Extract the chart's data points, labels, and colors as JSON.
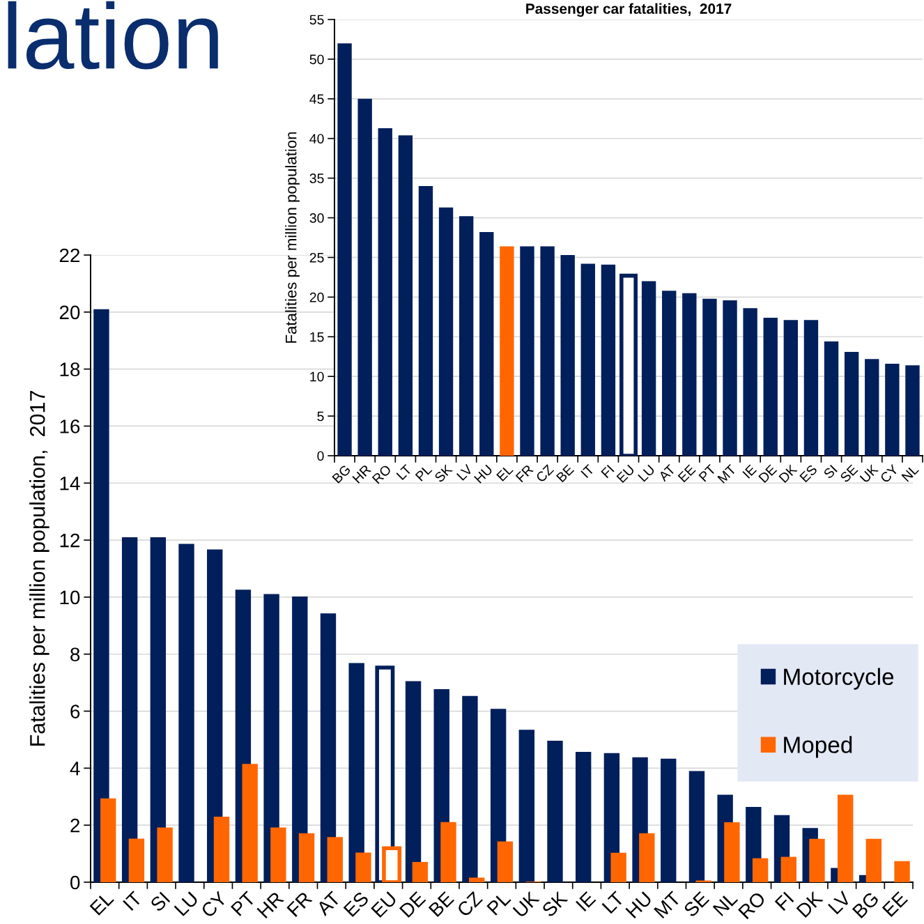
{
  "chart_data": [
    {
      "type": "bar",
      "ylabel": "Fatalities per million population,  2017",
      "annotations": [
        "lation"
      ],
      "categories": [
        "EL",
        "IT",
        "SI",
        "LU",
        "CY",
        "PT",
        "HR",
        "FR",
        "AT",
        "ES",
        "EU",
        "DE",
        "BE",
        "CZ",
        "PL",
        "UK",
        "SK",
        "IE",
        "LT",
        "HU",
        "MT",
        "SE",
        "NL",
        "RO",
        "FI",
        "DK",
        "LV",
        "BG",
        "EE"
      ],
      "series": [
        {
          "name": "Motorcycle",
          "color": "#001f5b",
          "colors": [
            "#001f5b",
            "#001f5b",
            "#001f5b",
            "#001f5b",
            "#001f5b",
            "#001f5b",
            "#001f5b",
            "#001f5b",
            "#001f5b",
            "#001f5b",
            "#ffffff",
            "#001f5b",
            "#001f5b",
            "#001f5b",
            "#001f5b",
            "#001f5b",
            "#001f5b",
            "#001f5b",
            "#001f5b",
            "#001f5b",
            "#001f5b",
            "#001f5b",
            "#001f5b",
            "#001f5b",
            "#001f5b",
            "#001f5b",
            "#001f5b",
            "#001f5b",
            "#001f5b"
          ],
          "values": [
            20.1,
            12.1,
            12.1,
            11.87,
            11.67,
            10.26,
            10.11,
            10.02,
            9.43,
            7.69,
            7.53,
            7.05,
            6.77,
            6.53,
            6.08,
            5.35,
            4.96,
            4.57,
            4.53,
            4.38,
            4.33,
            3.9,
            3.07,
            2.64,
            2.35,
            1.9,
            0.5,
            0.25,
            0
          ]
        },
        {
          "name": "Moped",
          "color": "#ff6600",
          "colors": [
            "#ff6600",
            "#ff6600",
            "#ff6600",
            "#ff6600",
            "#ff6600",
            "#ff6600",
            "#ff6600",
            "#ff6600",
            "#ff6600",
            "#ff6600",
            "#ffffff",
            "#ff6600",
            "#ff6600",
            "#ff6600",
            "#ff6600",
            "#ff6600",
            "#ff6600",
            "#ff6600",
            "#ff6600",
            "#ff6600",
            "#ff6600",
            "#ff6600",
            "#ff6600",
            "#ff6600",
            "#ff6600",
            "#ff6600",
            "#ff6600",
            "#ff6600",
            "#ff6600"
          ],
          "values": [
            2.94,
            1.53,
            1.92,
            0,
            2.3,
            4.15,
            1.92,
            1.72,
            1.58,
            1.04,
            1.19,
            0.71,
            2.11,
            0.16,
            1.43,
            0.02,
            0,
            0,
            1.03,
            1.72,
            0,
            0.06,
            2.1,
            0.84,
            0.89,
            1.52,
            3.07,
            1.52,
            0.74
          ]
        }
      ],
      "ylim": [
        0,
        22
      ],
      "yticks": [
        0,
        2,
        4,
        6,
        8,
        10,
        12,
        14,
        16,
        18,
        20,
        22
      ],
      "grid": "y",
      "legend": "right"
    },
    {
      "type": "bar",
      "title": "Passenger car fatalities,  2017",
      "ylabel": "Fatalities per million population",
      "categories": [
        "BG",
        "HR",
        "RO",
        "LT",
        "PL",
        "SK",
        "LV",
        "HU",
        "EL",
        "FR",
        "CZ",
        "BE",
        "IT",
        "FI",
        "EU",
        "LU",
        "AT",
        "EE",
        "PT",
        "MT",
        "IE",
        "DE",
        "DK",
        "ES",
        "SI",
        "SE",
        "UK",
        "CY",
        "NL"
      ],
      "series": [
        {
          "color": "#001f5b",
          "colors": [
            "#001f5b",
            "#001f5b",
            "#001f5b",
            "#001f5b",
            "#001f5b",
            "#001f5b",
            "#001f5b",
            "#001f5b",
            "#ff6600",
            "#001f5b",
            "#001f5b",
            "#001f5b",
            "#001f5b",
            "#001f5b",
            "#ffffff",
            "#001f5b",
            "#001f5b",
            "#001f5b",
            "#001f5b",
            "#001f5b",
            "#001f5b",
            "#001f5b",
            "#001f5b",
            "#001f5b",
            "#001f5b",
            "#001f5b",
            "#001f5b",
            "#001f5b",
            "#001f5b"
          ],
          "values": [
            52.0,
            45.0,
            41.3,
            40.4,
            34.0,
            31.3,
            30.2,
            28.2,
            26.4,
            26.4,
            26.4,
            25.3,
            24.2,
            24.1,
            22.7,
            22.0,
            20.8,
            20.5,
            19.8,
            19.6,
            18.6,
            17.4,
            17.1,
            17.1,
            14.4,
            13.1,
            12.2,
            11.6,
            11.4
          ]
        }
      ],
      "ylim": [
        0,
        55
      ],
      "yticks": [
        0,
        5,
        10,
        15,
        20,
        25,
        30,
        35,
        40,
        45,
        50,
        55
      ],
      "grid": "y",
      "legend": false
    }
  ]
}
